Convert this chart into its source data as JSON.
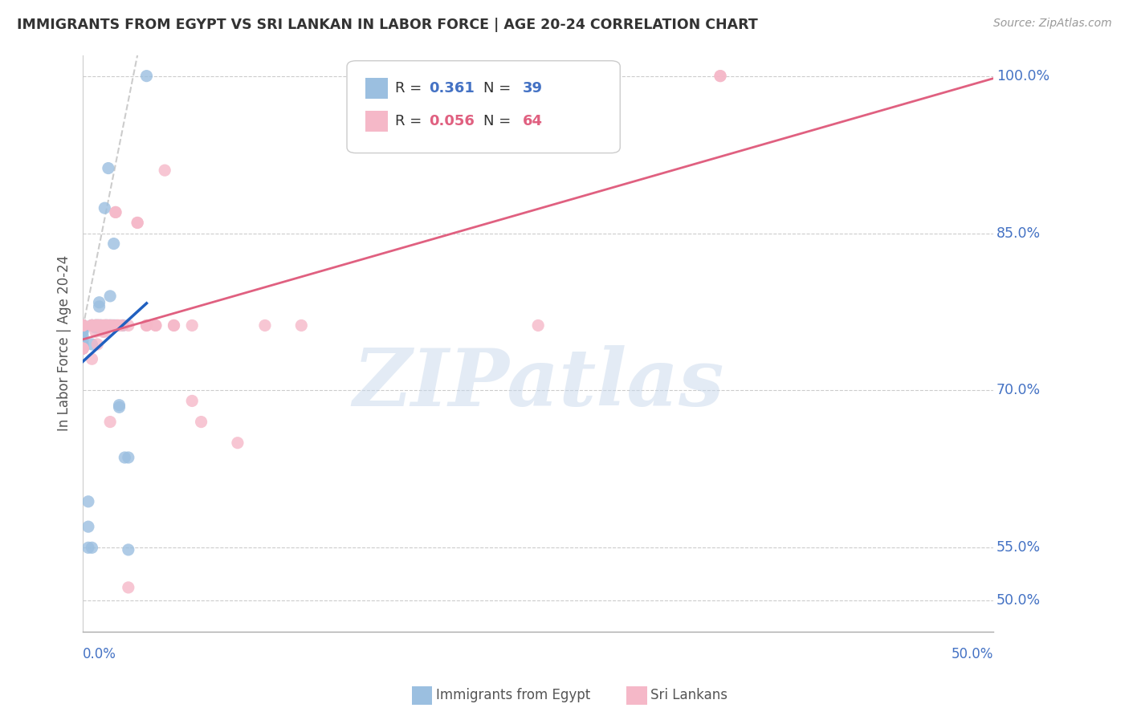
{
  "title": "IMMIGRANTS FROM EGYPT VS SRI LANKAN IN LABOR FORCE | AGE 20-24 CORRELATION CHART",
  "source": "Source: ZipAtlas.com",
  "ylabel": "In Labor Force | Age 20-24",
  "xmin": 0.0,
  "xmax": 50.0,
  "ymin": 47.0,
  "ymax": 102.0,
  "right_yticks": [
    50.0,
    55.0,
    70.0,
    85.0,
    100.0
  ],
  "right_ylabels": [
    "50.0%",
    "55.0%",
    "70.0%",
    "85.0%",
    "100.0%"
  ],
  "blue_color": "#9bbfe0",
  "pink_color": "#f5b8c8",
  "blue_line_color": "#2060c0",
  "pink_line_color": "#e06080",
  "blue_legend_r": "0.361",
  "blue_legend_n": "39",
  "pink_legend_r": "0.056",
  "pink_legend_n": "64",
  "blue_points_x": [
    0.0,
    0.0,
    0.0,
    0.0,
    0.0,
    0.0,
    0.0,
    0.0,
    0.0,
    0.0,
    0.3,
    0.3,
    0.3,
    0.5,
    0.5,
    0.5,
    0.5,
    0.7,
    0.7,
    0.7,
    0.8,
    0.8,
    0.9,
    0.9,
    0.9,
    1.0,
    1.0,
    1.2,
    1.2,
    1.3,
    1.3,
    1.4,
    1.5,
    1.5,
    1.5,
    1.6,
    1.7,
    1.7,
    1.8,
    2.0,
    2.0,
    2.2,
    2.3,
    2.5,
    2.5,
    3.5
  ],
  "blue_points_y": [
    76.2,
    76.2,
    76.2,
    76.0,
    75.8,
    75.6,
    75.2,
    74.8,
    74.4,
    74.0,
    59.4,
    57.0,
    55.0,
    76.2,
    76.2,
    74.4,
    55.0,
    76.2,
    76.2,
    76.0,
    76.2,
    76.2,
    76.2,
    78.0,
    78.4,
    76.2,
    76.2,
    87.4,
    76.2,
    76.2,
    76.2,
    91.2,
    76.2,
    79.0,
    76.2,
    76.2,
    84.0,
    76.2,
    76.2,
    68.6,
    68.4,
    76.2,
    63.6,
    63.6,
    54.8,
    100.0
  ],
  "pink_points_x": [
    0.0,
    0.0,
    0.0,
    0.0,
    0.0,
    0.0,
    0.0,
    0.0,
    0.0,
    0.5,
    0.5,
    0.5,
    0.5,
    0.7,
    0.7,
    0.7,
    0.7,
    0.8,
    0.8,
    0.8,
    0.8,
    0.9,
    0.9,
    0.9,
    1.0,
    1.0,
    1.1,
    1.1,
    1.2,
    1.2,
    1.2,
    1.3,
    1.3,
    1.4,
    1.4,
    1.5,
    1.5,
    1.6,
    1.7,
    1.8,
    1.8,
    1.9,
    1.9,
    2.0,
    2.2,
    2.5,
    2.5,
    3.0,
    3.0,
    3.5,
    3.5,
    4.0,
    4.0,
    4.5,
    5.0,
    5.0,
    6.0,
    6.0,
    6.5,
    8.5,
    10.0,
    12.0,
    25.0,
    35.0,
    35.0
  ],
  "pink_points_y": [
    76.2,
    76.2,
    76.2,
    76.2,
    76.2,
    74.0,
    74.0,
    74.0,
    74.0,
    76.2,
    76.2,
    73.0,
    76.2,
    76.2,
    76.2,
    75.6,
    76.2,
    76.2,
    76.2,
    76.2,
    74.4,
    76.2,
    76.2,
    76.2,
    76.2,
    76.0,
    76.2,
    75.6,
    76.2,
    76.2,
    75.6,
    76.2,
    76.2,
    76.2,
    76.2,
    76.2,
    67.0,
    76.2,
    76.2,
    87.0,
    87.0,
    76.2,
    76.2,
    76.2,
    76.2,
    76.2,
    51.2,
    86.0,
    86.0,
    76.2,
    76.2,
    76.2,
    76.2,
    91.0,
    76.2,
    76.2,
    76.2,
    69.0,
    67.0,
    65.0,
    76.2,
    76.2,
    76.2,
    100.0,
    100.0
  ],
  "watermark_text": "ZIPatlas",
  "dashed_line_x": [
    0.0,
    3.0
  ],
  "dashed_line_y": [
    76.0,
    102.0
  ]
}
